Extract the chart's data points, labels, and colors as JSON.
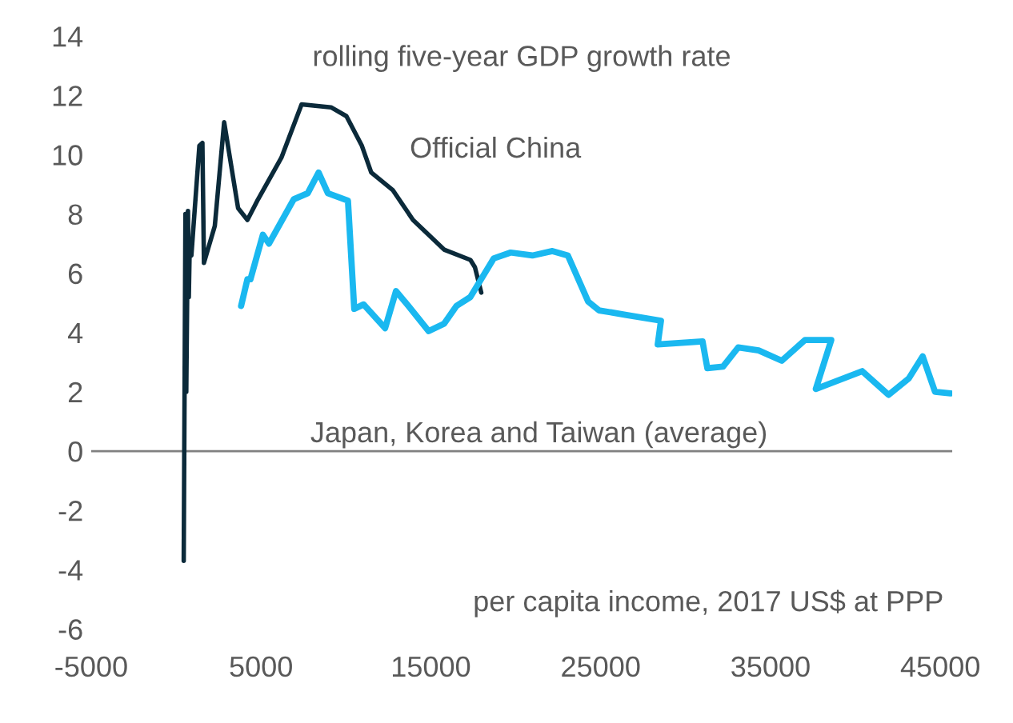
{
  "chart_data": {
    "type": "line",
    "title": "rolling five-year GDP growth rate",
    "xlabel": "per capita income, 2017 US$ at PPP",
    "series": [
      {
        "name": "Official China",
        "color": "#0b2a3a",
        "x": [
          450,
          550,
          600,
          700,
          750,
          800,
          900,
          1370,
          1550,
          1640,
          2280,
          2830,
          3650,
          4200,
          4830,
          6200,
          7390,
          9120,
          10030,
          10940,
          11490,
          12770,
          13950,
          15780,
          17330,
          17600,
          17970
        ],
        "values": [
          -3.7,
          8.0,
          2.0,
          8.1,
          5.2,
          6.8,
          6.6,
          10.3,
          10.4,
          6.35,
          7.6,
          11.1,
          8.2,
          7.8,
          8.5,
          9.9,
          11.7,
          11.6,
          11.3,
          10.3,
          9.4,
          8.8,
          7.8,
          6.8,
          6.45,
          6.2,
          5.35
        ]
      },
      {
        "name": "Japan, Korea and Taiwan (average)",
        "color": "#1ab8f0",
        "x": [
          3830,
          4200,
          4380,
          5110,
          5470,
          6930,
          7750,
          8390,
          8940,
          10120,
          10490,
          11040,
          12310,
          12950,
          13680,
          14870,
          15780,
          16510,
          17330,
          18700,
          19700,
          20980,
          22160,
          23070,
          24260,
          24900,
          26450,
          28550,
          28360,
          31000,
          31280,
          32200,
          33100,
          34300,
          35660,
          37030,
          38580,
          37670,
          40400,
          41950,
          43140,
          43960,
          44690,
          45600
        ],
        "values": [
          4.9,
          5.8,
          5.8,
          7.3,
          7.0,
          8.5,
          8.7,
          9.4,
          8.7,
          8.45,
          4.8,
          4.95,
          4.15,
          5.4,
          4.9,
          4.05,
          4.3,
          4.9,
          5.2,
          6.5,
          6.7,
          6.6,
          6.75,
          6.6,
          5.05,
          4.75,
          4.6,
          4.4,
          3.6,
          3.7,
          2.8,
          2.85,
          3.5,
          3.4,
          3.05,
          3.75,
          3.75,
          2.1,
          2.7,
          1.9,
          2.45,
          3.2,
          2.0,
          1.95
        ]
      }
    ],
    "xlim": [
      -5000,
      45700
    ],
    "xticks": [
      -5000,
      5000,
      15000,
      25000,
      35000,
      45000
    ],
    "ylim": [
      -6,
      14
    ],
    "yticks": [
      -6,
      -4,
      -2,
      0,
      2,
      4,
      6,
      8,
      10,
      12,
      14
    ],
    "ref_lines": [
      {
        "axis": "y",
        "value": 0,
        "color": "#808080"
      }
    ],
    "grid": false,
    "legend": false,
    "line_style": "solid",
    "marker": "none"
  }
}
